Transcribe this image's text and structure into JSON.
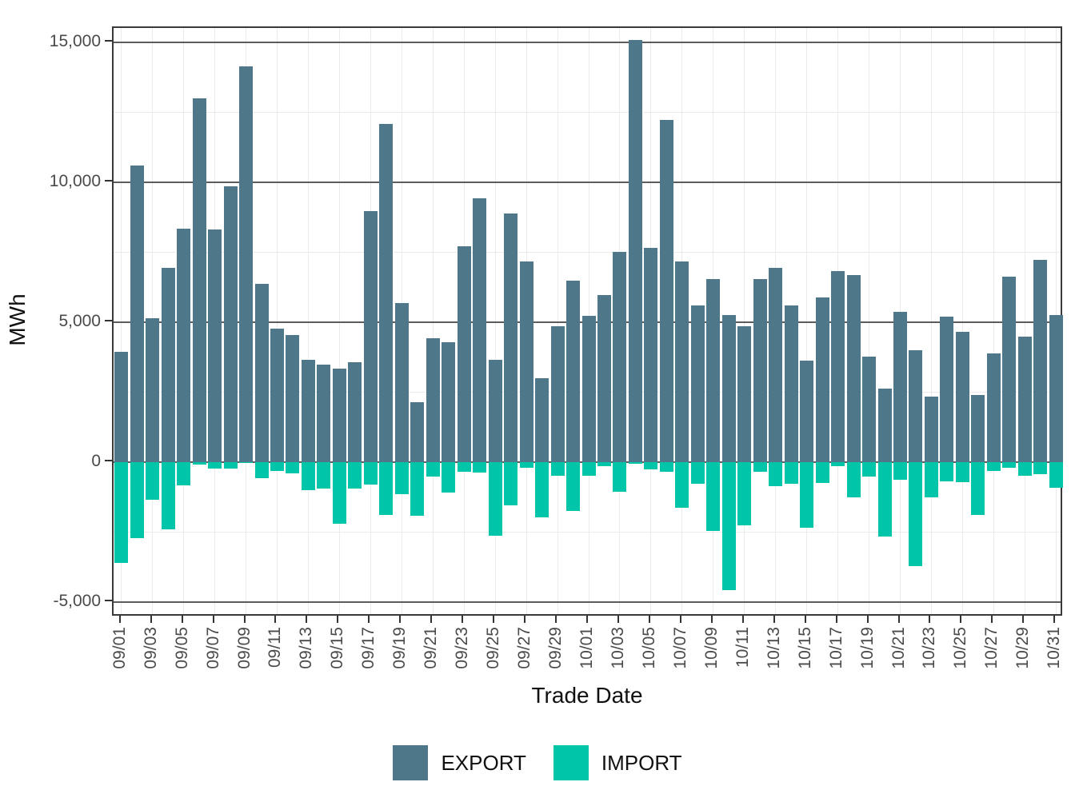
{
  "axes": {
    "x_title": "Trade Date",
    "y_title": "MWh"
  },
  "legend": {
    "items": [
      {
        "label": "EXPORT",
        "color": "#4e7889"
      },
      {
        "label": "IMPORT",
        "color": "#00c5a8"
      }
    ]
  },
  "colors": {
    "export": "#4e7889",
    "import": "#00c5a8",
    "grid_major": "#5c5c5c",
    "grid_minor": "#ebebeb",
    "panel_border": "#3a3a3a",
    "tick_label": "#4a4a4a"
  },
  "chart_data": {
    "type": "bar",
    "title": "",
    "xlabel": "Trade Date",
    "ylabel": "MWh",
    "ylim": [
      -5543,
      15514
    ],
    "grid": true,
    "legend_position": "bottom",
    "y_major_ticks": [
      {
        "value": 15000,
        "label": "15,000"
      },
      {
        "value": 10000,
        "label": "10,000"
      },
      {
        "value": 5000,
        "label": "5,000"
      },
      {
        "value": 0,
        "label": "0"
      },
      {
        "value": -5000,
        "label": "-5,000"
      }
    ],
    "y_minor_ticks": [
      12500,
      7500,
      2500,
      -2500
    ],
    "x_tick_every": 2,
    "categories": [
      "09/01",
      "09/02",
      "09/03",
      "09/04",
      "09/05",
      "09/06",
      "09/07",
      "09/08",
      "09/09",
      "09/10",
      "09/11",
      "09/12",
      "09/13",
      "09/14",
      "09/15",
      "09/16",
      "09/17",
      "09/18",
      "09/19",
      "09/20",
      "09/21",
      "09/22",
      "09/23",
      "09/24",
      "09/25",
      "09/26",
      "09/27",
      "09/28",
      "09/29",
      "09/30",
      "10/01",
      "10/02",
      "10/03",
      "10/04",
      "10/05",
      "10/06",
      "10/07",
      "10/08",
      "10/09",
      "10/10",
      "10/11",
      "10/12",
      "10/13",
      "10/14",
      "10/15",
      "10/16",
      "10/17",
      "10/18",
      "10/19",
      "10/20",
      "10/21",
      "10/22",
      "10/23",
      "10/24",
      "10/25",
      "10/26",
      "10/27",
      "10/28",
      "10/29",
      "10/30",
      "10/31"
    ],
    "series": [
      {
        "name": "EXPORT",
        "values": [
          3950,
          10600,
          5150,
          6950,
          8330,
          13000,
          8320,
          9850,
          14150,
          6380,
          4780,
          4550,
          3650,
          3500,
          3350,
          3560,
          8960,
          12080,
          5680,
          2150,
          4430,
          4280,
          7720,
          9430,
          3660,
          8890,
          7180,
          3010,
          4870,
          6480,
          5230,
          5970,
          7520,
          15090,
          7660,
          12220,
          7160,
          5610,
          6540,
          5260,
          4870,
          6540,
          6950,
          5590,
          3640,
          5900,
          6820,
          6680,
          3780,
          2640,
          5380,
          3990,
          2340,
          5190,
          4660,
          2400,
          3880,
          6630,
          4490,
          7240,
          5250
        ]
      },
      {
        "name": "IMPORT",
        "values": [
          -3600,
          -2700,
          -1350,
          -2400,
          -820,
          -90,
          -220,
          -220,
          -30,
          -580,
          -310,
          -390,
          -1010,
          -940,
          -2210,
          -940,
          -790,
          -1880,
          -1130,
          -1910,
          -510,
          -1090,
          -330,
          -370,
          -2620,
          -1540,
          -190,
          -1960,
          -490,
          -1750,
          -490,
          -140,
          -1050,
          -60,
          -260,
          -350,
          -1630,
          -760,
          -2470,
          -4580,
          -2270,
          -340,
          -860,
          -780,
          -2350,
          -750,
          -130,
          -1250,
          -520,
          -2650,
          -620,
          -3720,
          -1270,
          -680,
          -700,
          -1890,
          -300,
          -190,
          -490,
          -440,
          -900
        ]
      }
    ]
  }
}
